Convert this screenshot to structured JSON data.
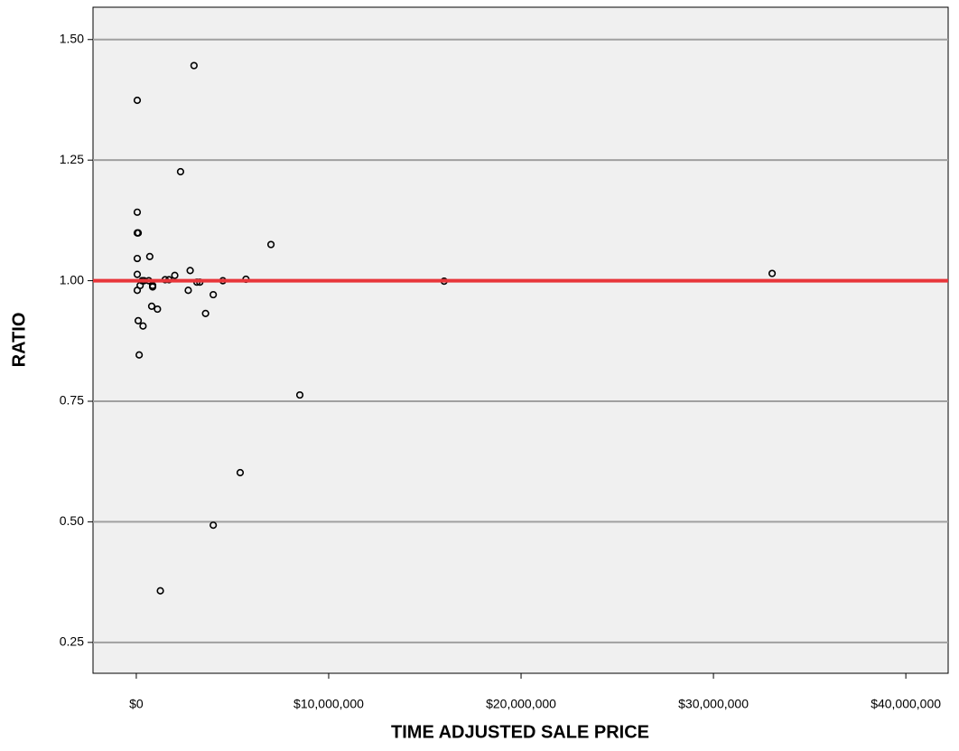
{
  "chart_data": {
    "type": "scatter",
    "x_label": "TIME ADJUSTED SALE PRICE",
    "y_label": "RATIO",
    "xlim": [
      -2250000,
      42200000
    ],
    "ylim": [
      0.186,
      1.567
    ],
    "xticks": [
      {
        "value": 0,
        "label": "$0"
      },
      {
        "value": 10000000,
        "label": "$10,000,000"
      },
      {
        "value": 20000000,
        "label": "$20,000,000"
      },
      {
        "value": 30000000,
        "label": "$30,000,000"
      },
      {
        "value": 40000000,
        "label": "$40,000,000"
      }
    ],
    "yticks": [
      {
        "value": 0.25,
        "label": "0.25"
      },
      {
        "value": 0.5,
        "label": "0.50"
      },
      {
        "value": 0.75,
        "label": "0.75"
      },
      {
        "value": 1,
        "label": "1.00"
      },
      {
        "value": 1.25,
        "label": "1.25"
      },
      {
        "value": 1.5,
        "label": "1.50"
      }
    ],
    "grid": true,
    "reference_line": {
      "value": 1,
      "color": "#e8363a"
    },
    "color": "#000000",
    "x": [
      3000000,
      50000,
      2300000,
      50000,
      100000,
      50000,
      7000000,
      700000,
      50000,
      33050000,
      50000,
      2000000,
      2800000,
      1500000,
      1700000,
      5700000,
      4500000,
      3300000,
      3150000,
      16000000,
      400000,
      650000,
      300000,
      200000,
      850000,
      850000,
      50000,
      2700000,
      4000000,
      800000,
      1100000,
      3600000,
      100000,
      350000,
      150000,
      8500000,
      5400000,
      4000000,
      1250000
    ],
    "y": [
      1.446,
      1.374,
      1.226,
      1.142,
      1.099,
      1.099,
      1.075,
      1.05,
      1.046,
      1.015,
      1.013,
      1.011,
      1.021,
      1.002,
      1.002,
      1.003,
      1.0,
      0.997,
      0.997,
      0.999,
      1.0,
      1.0,
      1.0,
      0.99,
      0.99,
      0.987,
      0.98,
      0.98,
      0.971,
      0.947,
      0.941,
      0.932,
      0.917,
      0.906,
      0.846,
      0.763,
      0.602,
      0.493,
      0.357
    ]
  }
}
